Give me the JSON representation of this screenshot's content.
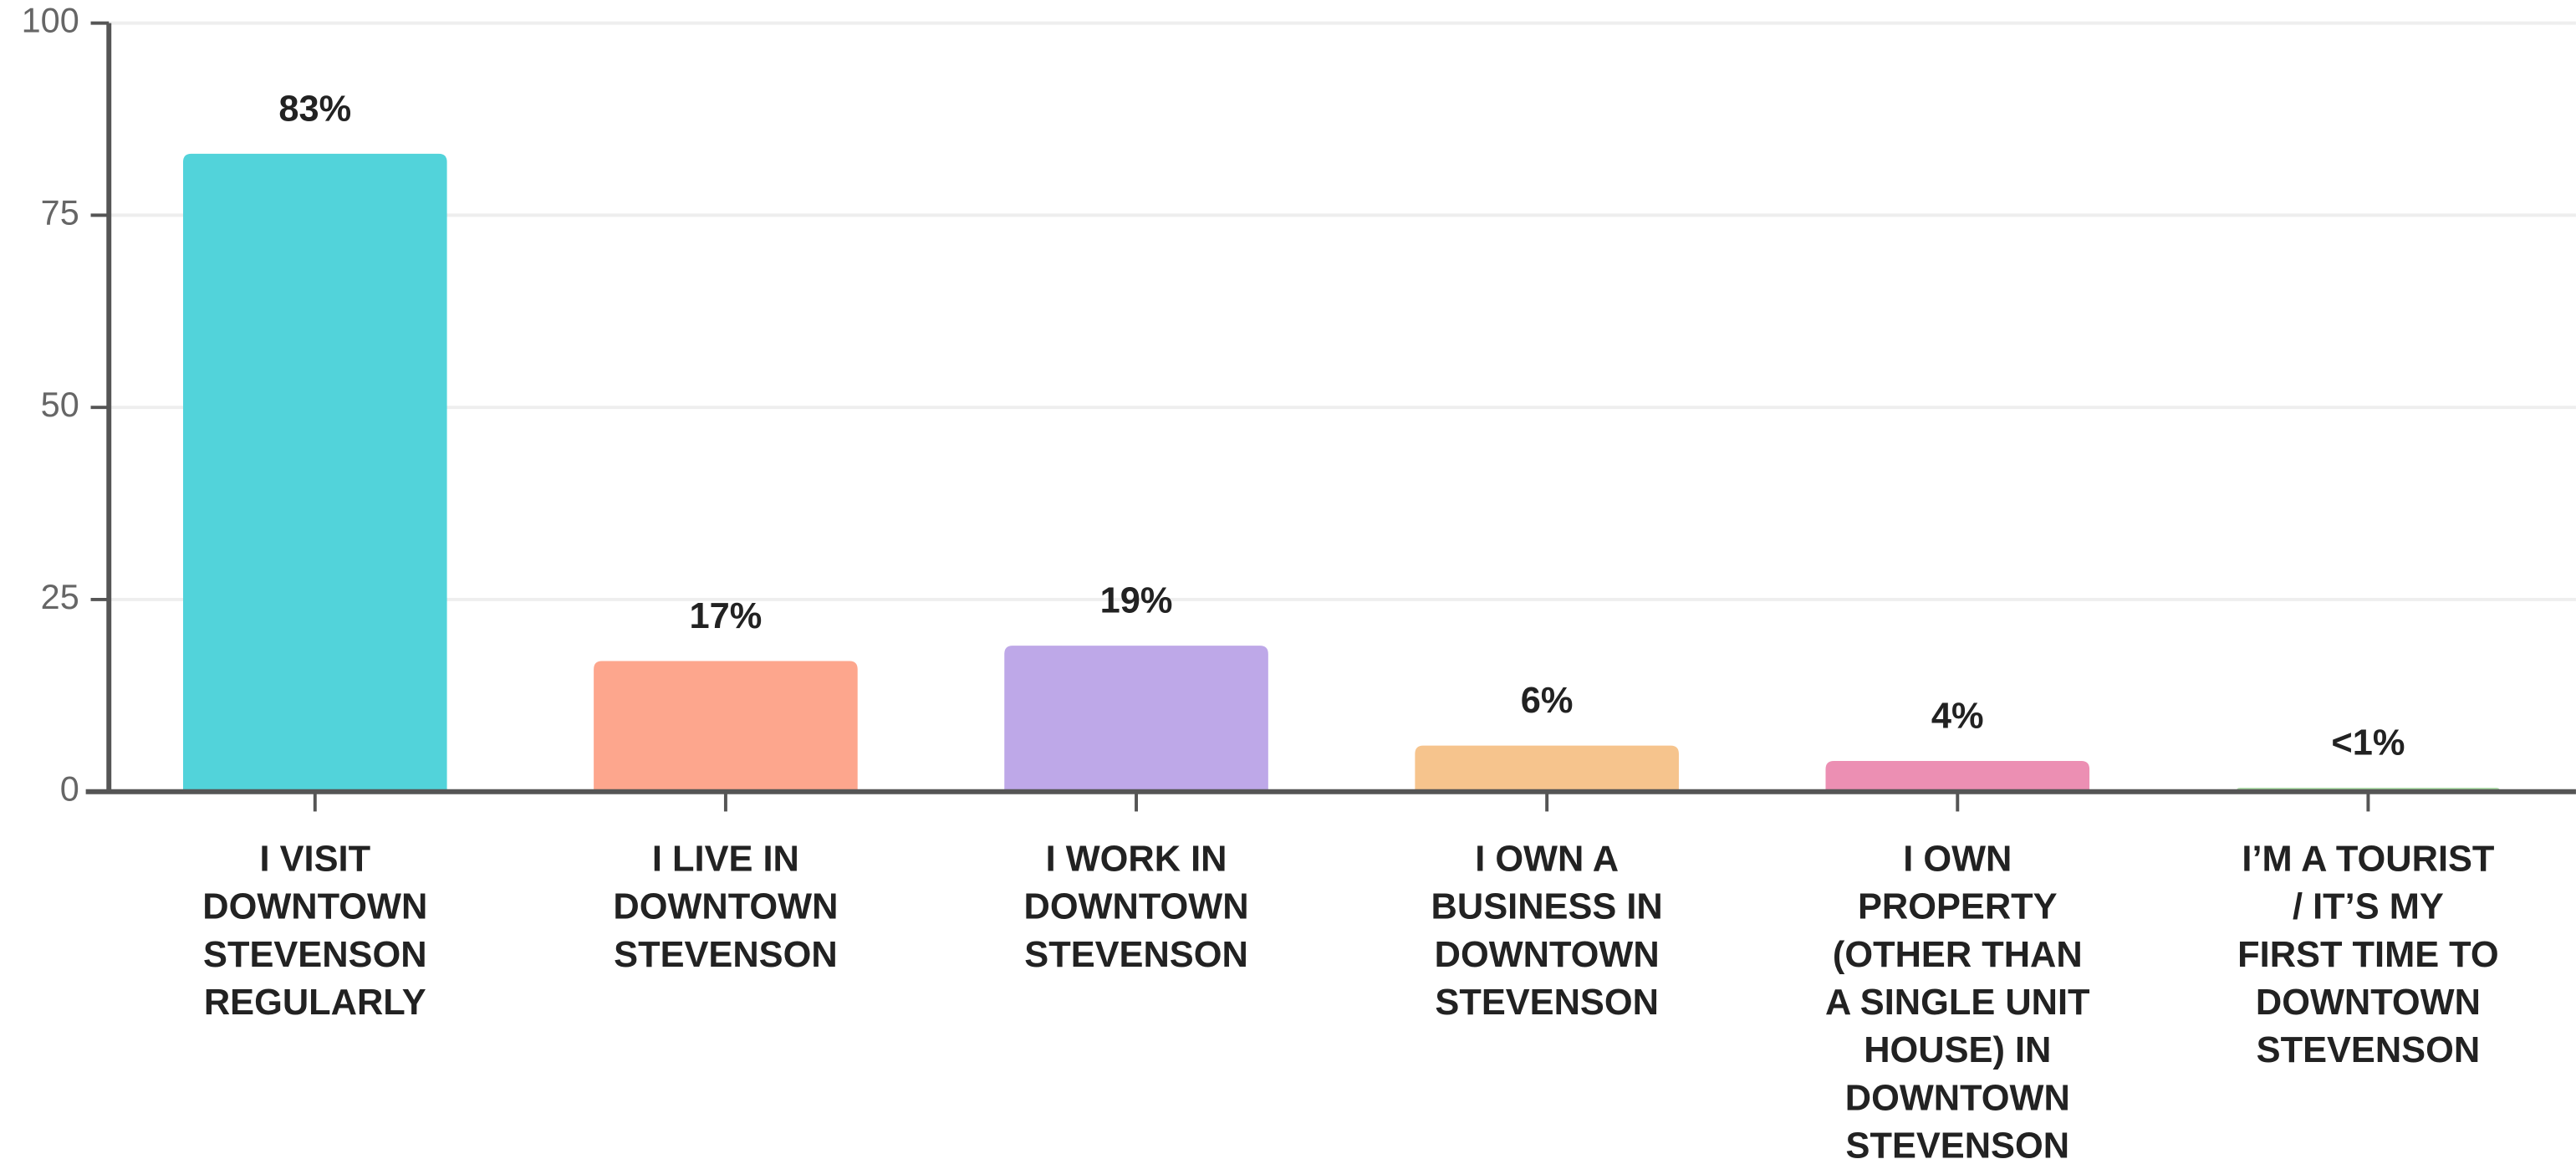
{
  "chart_data": {
    "type": "bar",
    "categories": [
      [
        "I VISIT",
        "DOWNTOWN",
        "STEVENSON",
        "REGULARLY"
      ],
      [
        "I LIVE IN",
        "DOWNTOWN",
        "STEVENSON"
      ],
      [
        "I WORK IN",
        "DOWNTOWN",
        "STEVENSON"
      ],
      [
        "I OWN A",
        "BUSINESS IN",
        "DOWNTOWN",
        "STEVENSON"
      ],
      [
        "I OWN",
        "PROPERTY",
        "(OTHER THAN",
        "A SINGLE UNIT",
        "HOUSE) IN",
        "DOWNTOWN",
        "STEVENSON"
      ],
      [
        "I’M A TOURIST",
        "/ IT’S MY",
        "FIRST TIME TO",
        "DOWNTOWN",
        "STEVENSON"
      ]
    ],
    "values": [
      83,
      17,
      19,
      6,
      4,
      0.5
    ],
    "value_labels": [
      "83%",
      "17%",
      "19%",
      "6%",
      "4%",
      "<1%"
    ],
    "colors": [
      "#52d3da",
      "#fda68d",
      "#bea8e8",
      "#f6c48d",
      "#ec8fb3",
      "#a9d9a4"
    ],
    "ylim": [
      0,
      100
    ],
    "yticks": [
      0,
      25,
      50,
      75,
      100
    ],
    "grid": true
  }
}
